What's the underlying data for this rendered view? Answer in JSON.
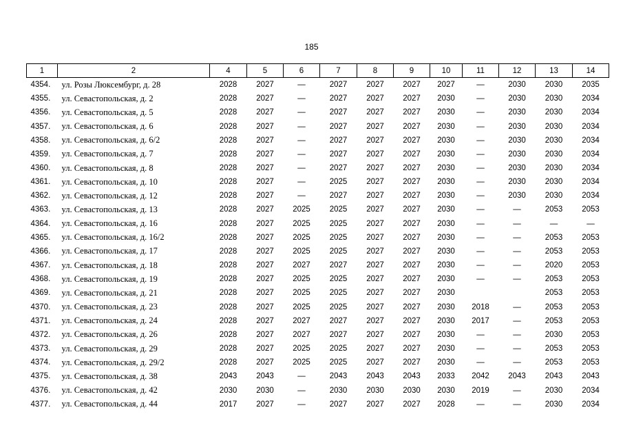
{
  "page_number": "185",
  "table": {
    "header": [
      "1",
      "2",
      "4",
      "5",
      "6",
      "7",
      "8",
      "9",
      "10",
      "11",
      "12",
      "13",
      "14"
    ],
    "rows": [
      [
        "4354.",
        "ул. Розы Люксембург, д. 28",
        "2028",
        "2027",
        "—",
        "2027",
        "2027",
        "2027",
        "2027",
        "—",
        "2030",
        "2030",
        "2035"
      ],
      [
        "4355.",
        "ул. Севастопольская, д. 2",
        "2028",
        "2027",
        "—",
        "2027",
        "2027",
        "2027",
        "2030",
        "—",
        "2030",
        "2030",
        "2034"
      ],
      [
        "4356.",
        "ул. Севастопольская, д. 5",
        "2028",
        "2027",
        "—",
        "2027",
        "2027",
        "2027",
        "2030",
        "—",
        "2030",
        "2030",
        "2034"
      ],
      [
        "4357.",
        "ул. Севастопольская, д. 6",
        "2028",
        "2027",
        "—",
        "2027",
        "2027",
        "2027",
        "2030",
        "—",
        "2030",
        "2030",
        "2034"
      ],
      [
        "4358.",
        "ул. Севастопольская, д. 6/2",
        "2028",
        "2027",
        "—",
        "2027",
        "2027",
        "2027",
        "2030",
        "—",
        "2030",
        "2030",
        "2034"
      ],
      [
        "4359.",
        "ул. Севастопольская, д. 7",
        "2028",
        "2027",
        "—",
        "2027",
        "2027",
        "2027",
        "2030",
        "—",
        "2030",
        "2030",
        "2034"
      ],
      [
        "4360.",
        "ул. Севастопольская, д. 8",
        "2028",
        "2027",
        "—",
        "2027",
        "2027",
        "2027",
        "2030",
        "—",
        "2030",
        "2030",
        "2034"
      ],
      [
        "4361.",
        "ул. Севастопольская, д. 10",
        "2028",
        "2027",
        "—",
        "2025",
        "2027",
        "2027",
        "2030",
        "—",
        "2030",
        "2030",
        "2034"
      ],
      [
        "4362.",
        "ул. Севастопольская, д. 12",
        "2028",
        "2027",
        "—",
        "2027",
        "2027",
        "2027",
        "2030",
        "—",
        "2030",
        "2030",
        "2034"
      ],
      [
        "4363.",
        "ул. Севастопольская, д. 13",
        "2028",
        "2027",
        "2025",
        "2025",
        "2027",
        "2027",
        "2030",
        "—",
        "—",
        "2053",
        "2053"
      ],
      [
        "4364.",
        "ул. Севастопольская, д. 16",
        "2028",
        "2027",
        "2025",
        "2025",
        "2027",
        "2027",
        "2030",
        "—",
        "—",
        "—",
        "—"
      ],
      [
        "4365.",
        "ул. Севастопольская, д. 16/2",
        "2028",
        "2027",
        "2025",
        "2025",
        "2027",
        "2027",
        "2030",
        "—",
        "—",
        "2053",
        "2053"
      ],
      [
        "4366.",
        "ул. Севастопольская, д. 17",
        "2028",
        "2027",
        "2025",
        "2025",
        "2027",
        "2027",
        "2030",
        "—",
        "—",
        "2053",
        "2053"
      ],
      [
        "4367.",
        "ул. Севастопольская, д. 18",
        "2028",
        "2027",
        "2027",
        "2027",
        "2027",
        "2027",
        "2030",
        "—",
        "—",
        "2020",
        "2053"
      ],
      [
        "4368.",
        "ул. Севастопольская, д. 19",
        "2028",
        "2027",
        "2025",
        "2025",
        "2027",
        "2027",
        "2030",
        "—",
        "—",
        "2053",
        "2053"
      ],
      [
        "4369.",
        "ул. Севастопольская, д. 21",
        "2028",
        "2027",
        "2025",
        "2025",
        "2027",
        "2027",
        "2030",
        null,
        null,
        "2053",
        "2053"
      ],
      [
        "4370.",
        "ул. Севастопольская, д. 23",
        "2028",
        "2027",
        "2025",
        "2025",
        "2027",
        "2027",
        "2030",
        "2018",
        "—",
        "2053",
        "2053"
      ],
      [
        "4371.",
        "ул. Севастопольская, д. 24",
        "2028",
        "2027",
        "2027",
        "2027",
        "2027",
        "2027",
        "2030",
        "2017",
        "—",
        "2053",
        "2053"
      ],
      [
        "4372.",
        "ул. Севастопольская, д. 26",
        "2028",
        "2027",
        "2027",
        "2027",
        "2027",
        "2027",
        "2030",
        "—",
        "—",
        "2030",
        "2053"
      ],
      [
        "4373.",
        "ул. Севастопольская, д. 29",
        "2028",
        "2027",
        "2025",
        "2025",
        "2027",
        "2027",
        "2030",
        "—",
        "—",
        "2053",
        "2053"
      ],
      [
        "4374.",
        "ул. Севастопольская, д. 29/2",
        "2028",
        "2027",
        "2025",
        "2025",
        "2027",
        "2027",
        "2030",
        "—",
        "—",
        "2053",
        "2053"
      ],
      [
        "4375.",
        "ул. Севастопольская, д. 38",
        "2043",
        "2043",
        "—",
        "2043",
        "2043",
        "2043",
        "2033",
        "2042",
        "2043",
        "2043",
        "2043"
      ],
      [
        "4376.",
        "ул. Севастопольская, д. 42",
        "2030",
        "2030",
        "—",
        "2030",
        "2030",
        "2030",
        "2030",
        "2019",
        "—",
        "2030",
        "2034"
      ],
      [
        "4377.",
        "ул. Севастопольская, д. 44",
        "2017",
        "2027",
        "—",
        "2027",
        "2027",
        "2027",
        "2028",
        "—",
        "—",
        "2030",
        "2034"
      ]
    ]
  }
}
